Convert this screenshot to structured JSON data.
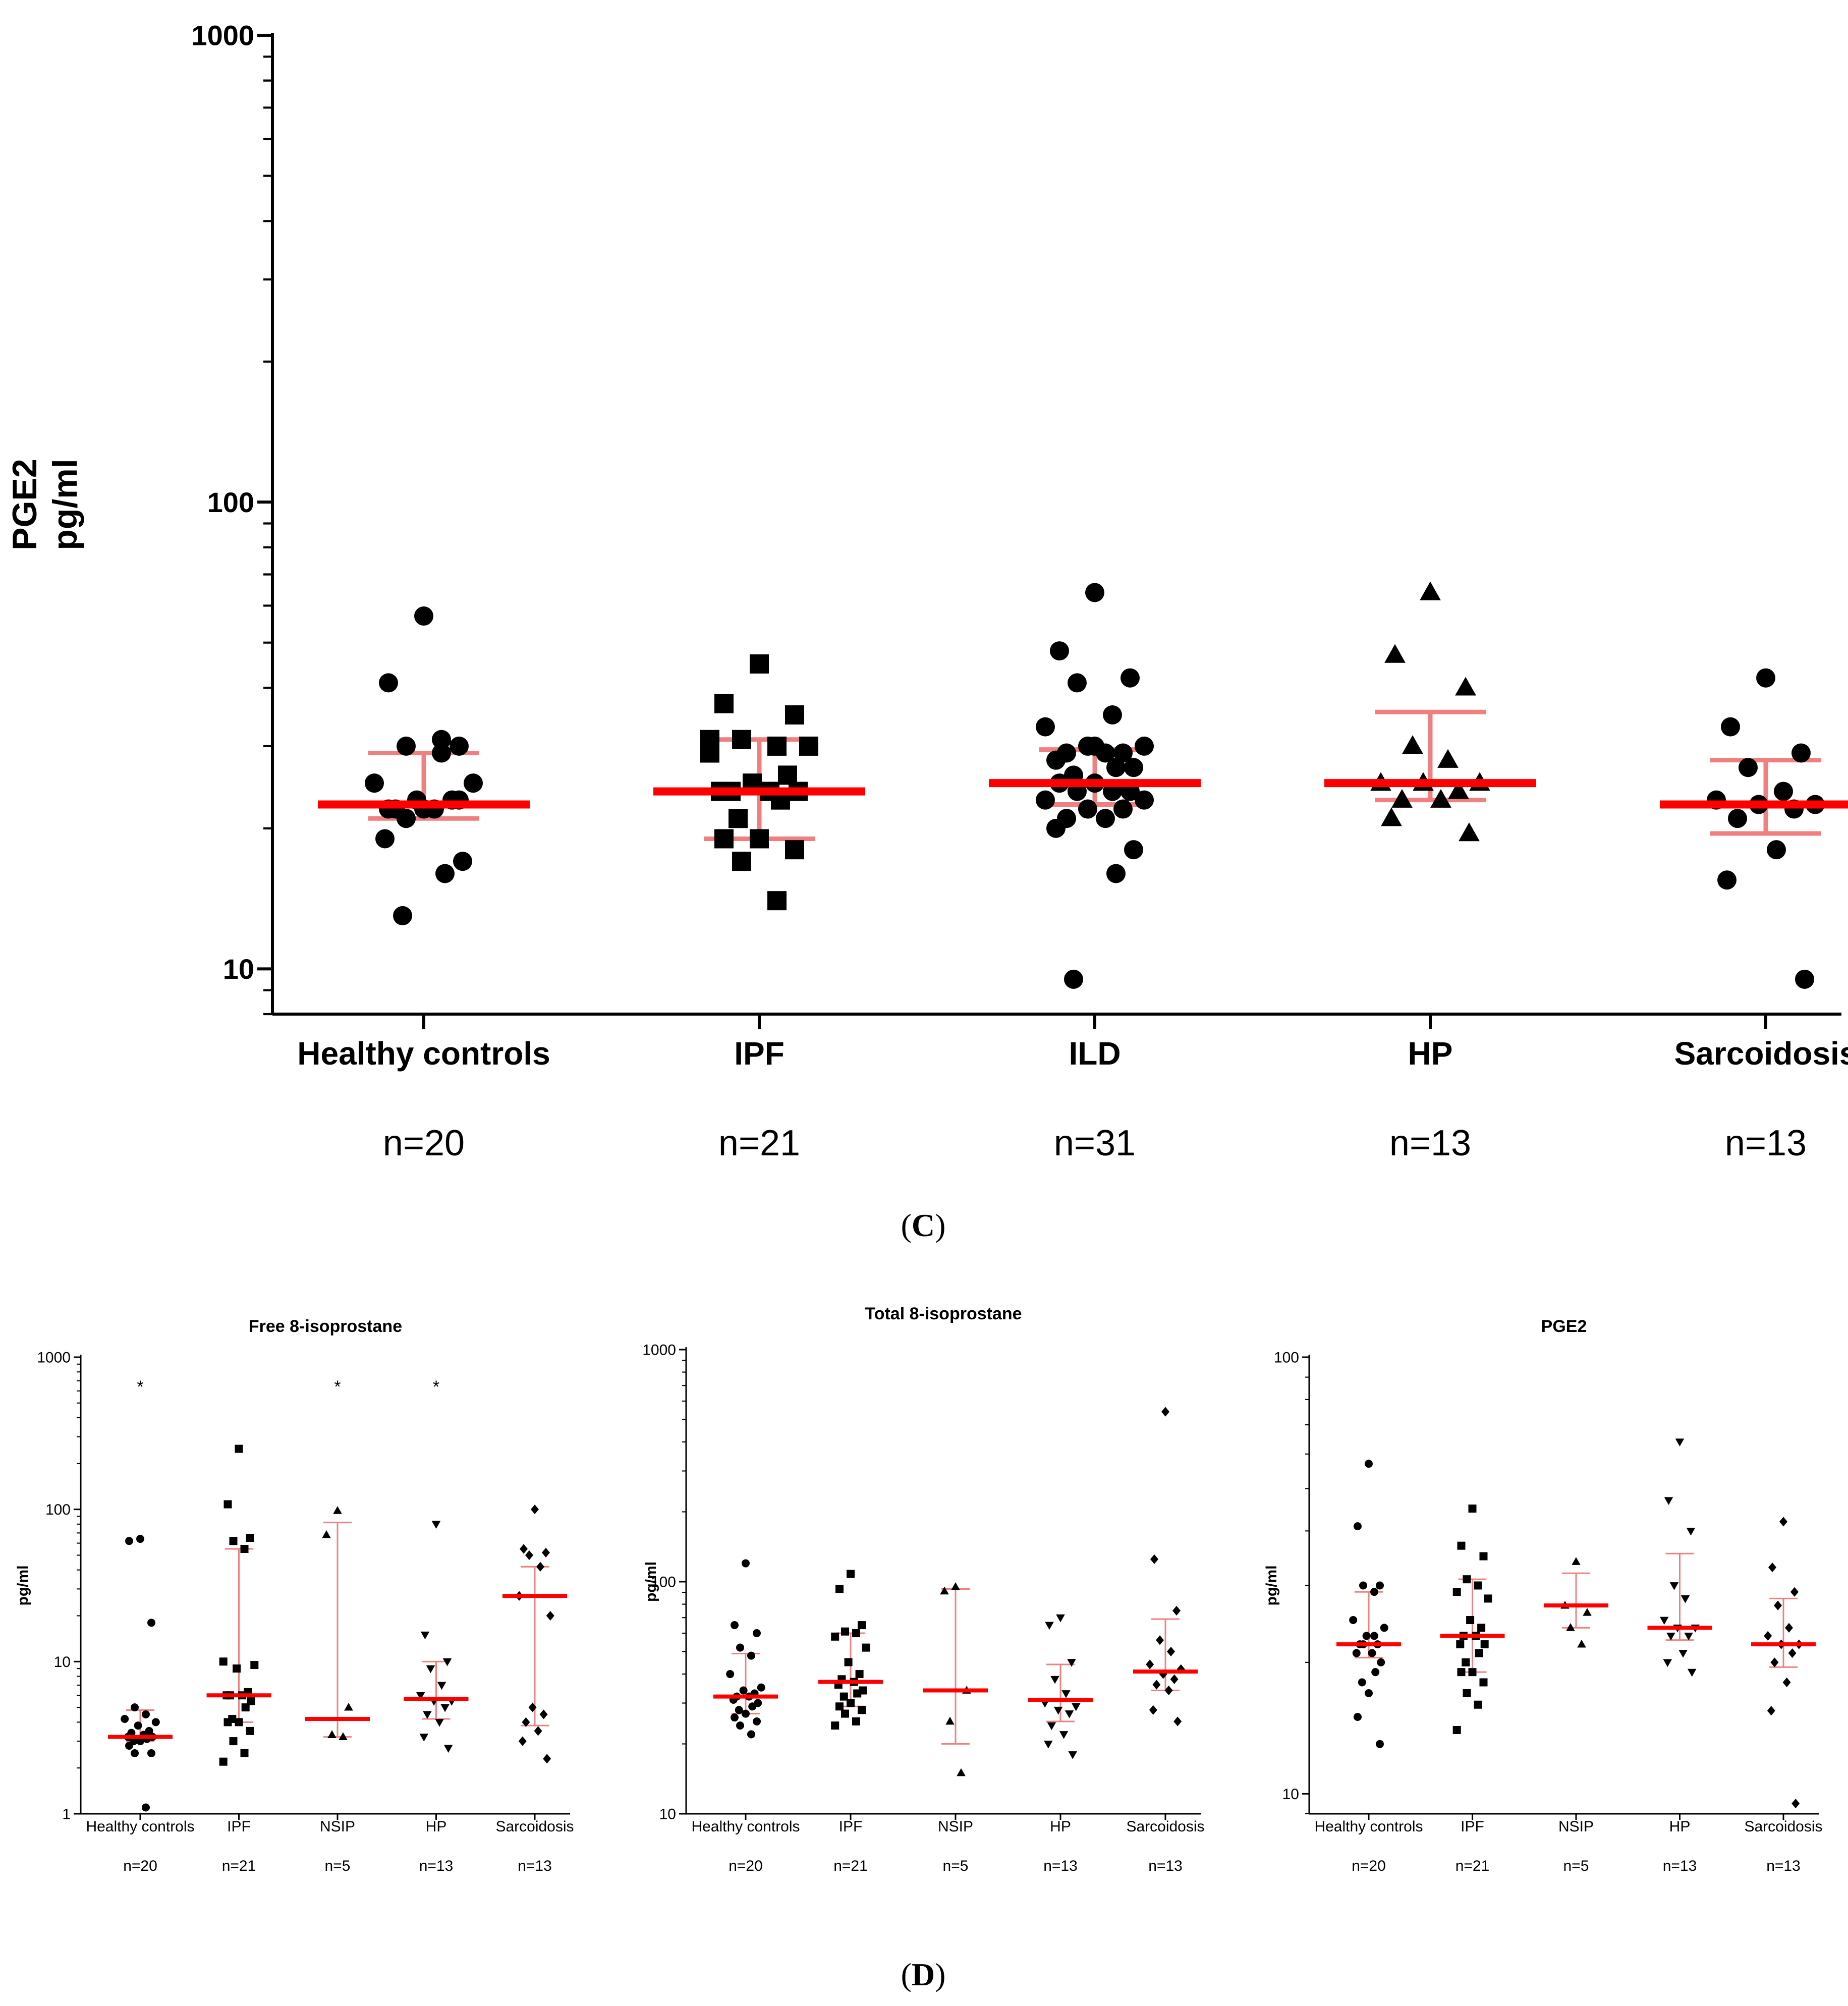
{
  "colors": {
    "points": "#000000",
    "median": "#ff0000",
    "iqr": "#f08080",
    "axis": "#000000"
  },
  "panel_c": {
    "label": "C",
    "ylabel_line1": "PGE2",
    "ylabel_line2": "pg/ml"
  },
  "panel_d": {
    "label": "D"
  },
  "chart_data": [
    {
      "id": "C",
      "type": "scatter",
      "title": "",
      "ylabel": "PGE2 pg/ml",
      "yscale": "log",
      "ylim": [
        8,
        1000
      ],
      "yticks": [
        10,
        100,
        1000
      ],
      "ytick_labels": [
        "10",
        "100",
        "1000"
      ],
      "categories": [
        "Healthy controls",
        "IPF",
        "ILD",
        "HP",
        "Sarcoidosis"
      ],
      "n_labels": [
        "n=20",
        "n=21",
        "n=31",
        "n=13",
        "n=13"
      ],
      "markers": [
        "circle",
        "square",
        "circle",
        "triangle",
        "circle"
      ],
      "medians": [
        22.5,
        24,
        25,
        25,
        22.5
      ],
      "iqr": [
        [
          21,
          29
        ],
        [
          19,
          31
        ],
        [
          22.5,
          29.5
        ],
        [
          23,
          35.5
        ],
        [
          19.5,
          28
        ]
      ],
      "points": [
        [
          57,
          41,
          30,
          30,
          31,
          25,
          25,
          23,
          23,
          22,
          22,
          19,
          17,
          16,
          13,
          22,
          22,
          23,
          21,
          29
        ],
        [
          45,
          37,
          35,
          31,
          30,
          31,
          30,
          25,
          26,
          24,
          24,
          24,
          24,
          23,
          21,
          19,
          19,
          18,
          17,
          14,
          29
        ],
        [
          64,
          48,
          42,
          41,
          35,
          33,
          30,
          30,
          29,
          29,
          29,
          28,
          27,
          27,
          26,
          25,
          25,
          24,
          24,
          24,
          23,
          23,
          22,
          22,
          21,
          21,
          20,
          18,
          16,
          9.5,
          30
        ],
        [
          64,
          47,
          40,
          30,
          28,
          25,
          25,
          25,
          24,
          23,
          23,
          21,
          19.5
        ],
        [
          42,
          33,
          29,
          27,
          24,
          23,
          22.5,
          22.5,
          22,
          21,
          18,
          15.5,
          9.5
        ]
      ]
    },
    {
      "id": "D1",
      "type": "scatter",
      "title": "Free 8-isoprostane",
      "ylabel": "pg/ml",
      "yscale": "log",
      "ylim": [
        1,
        1000
      ],
      "yticks": [
        1,
        10,
        100,
        1000
      ],
      "ytick_labels": [
        "1",
        "10",
        "100",
        "1000"
      ],
      "categories": [
        "Healthy controls",
        "IPF",
        "NSIP",
        "HP",
        "Sarcoidosis"
      ],
      "n_labels": [
        "n=20",
        "n=21",
        "n=5",
        "n=13",
        "n=13"
      ],
      "markers": [
        "circle",
        "square",
        "triangle",
        "triangle-down",
        "diamond"
      ],
      "significance": [
        "*",
        "",
        "*",
        "*",
        ""
      ],
      "medians": [
        3.2,
        6,
        4.2,
        5.7,
        27
      ],
      "iqr": [
        [
          3,
          4.8
        ],
        [
          4,
          55
        ],
        [
          3.2,
          82
        ],
        [
          4.2,
          10
        ],
        [
          3.8,
          42
        ]
      ],
      "points": [
        [
          64,
          62,
          18,
          5,
          4.5,
          4.2,
          4,
          3.8,
          3.5,
          3.4,
          3.3,
          3.2,
          3.2,
          3.1,
          3,
          3,
          2.8,
          2.5,
          2.5,
          1.1
        ],
        [
          250,
          108,
          65,
          62,
          55,
          10,
          9.5,
          9,
          6.3,
          6,
          6,
          6,
          5.5,
          5,
          4.2,
          4,
          4,
          3.5,
          3,
          2.5,
          2.2
        ],
        [
          98,
          68,
          5,
          3.3,
          3.2
        ],
        [
          80,
          15,
          10,
          9,
          7,
          6,
          5.5,
          5.5,
          5,
          4.5,
          4,
          3.2,
          2.7
        ],
        [
          100,
          55,
          52,
          50,
          42,
          27,
          20,
          5,
          4.5,
          4,
          3.5,
          3,
          2.3
        ]
      ]
    },
    {
      "id": "D2",
      "type": "scatter",
      "title": "Total 8-isoprostane",
      "ylabel": "pg/ml",
      "yscale": "log",
      "ylim": [
        10,
        1000
      ],
      "yticks": [
        10,
        100,
        1000
      ],
      "ytick_labels": [
        "10",
        "100",
        "1000"
      ],
      "categories": [
        "Healthy controls",
        "IPF",
        "NSIP",
        "HP",
        "Sarcoidosis"
      ],
      "n_labels": [
        "n=20",
        "n=21",
        "n=5",
        "n=13",
        "n=13"
      ],
      "markers": [
        "circle",
        "square",
        "triangle",
        "triangle-down",
        "diamond"
      ],
      "medians": [
        32,
        37,
        34,
        31,
        41
      ],
      "iqr": [
        [
          27,
          49
        ],
        [
          29,
          60
        ],
        [
          20,
          93
        ],
        [
          25,
          44
        ],
        [
          34,
          69
        ]
      ],
      "points": [
        [
          120,
          65,
          60,
          52,
          48,
          40,
          35,
          34,
          33,
          32,
          32,
          31,
          30,
          29,
          28,
          27,
          26,
          25,
          24,
          22
        ],
        [
          108,
          93,
          65,
          61,
          60,
          58,
          52,
          45,
          40,
          38,
          37,
          36,
          34,
          33,
          32,
          30,
          29,
          28,
          27,
          25,
          24
        ],
        [
          95,
          91,
          34,
          25,
          15
        ],
        [
          70,
          65,
          45,
          38,
          33,
          30,
          29,
          28,
          27,
          24,
          22,
          20,
          18
        ],
        [
          540,
          125,
          75,
          56,
          50,
          44,
          42,
          40,
          38,
          36,
          34,
          28,
          25
        ]
      ]
    },
    {
      "id": "D3",
      "type": "scatter",
      "title": "PGE2",
      "ylabel": "pg/ml",
      "yscale": "log",
      "ylim": [
        9,
        100
      ],
      "yticks": [
        10,
        100
      ],
      "ytick_labels": [
        "10",
        "100"
      ],
      "categories": [
        "Healthy controls",
        "IPF",
        "NSIP",
        "HP",
        "Sarcoidosis"
      ],
      "n_labels": [
        "n=20",
        "n=21",
        "n=5",
        "n=13",
        "n=13"
      ],
      "markers": [
        "circle",
        "square",
        "triangle",
        "triangle-down",
        "diamond"
      ],
      "medians": [
        22,
        23,
        27,
        24,
        22
      ],
      "iqr": [
        [
          20.5,
          29
        ],
        [
          19,
          31
        ],
        [
          24,
          32
        ],
        [
          22.5,
          35.5
        ],
        [
          19.5,
          28
        ]
      ],
      "points": [
        [
          57,
          41,
          30,
          30,
          29,
          25,
          24,
          23,
          22,
          22,
          21,
          21,
          20,
          19,
          18,
          17,
          15,
          13,
          22,
          23
        ],
        [
          45,
          37,
          35,
          31,
          30,
          29,
          28,
          25,
          24,
          23,
          23,
          22,
          22,
          21,
          20,
          19,
          19,
          18,
          17,
          16,
          14
        ],
        [
          34,
          27,
          26,
          24,
          22
        ],
        [
          64,
          47,
          40,
          30,
          28,
          25,
          24,
          24,
          23,
          23,
          21,
          20,
          19
        ],
        [
          42,
          33,
          29,
          27,
          24,
          23,
          22,
          22,
          21,
          20,
          18,
          15.5,
          9.5
        ]
      ]
    }
  ]
}
